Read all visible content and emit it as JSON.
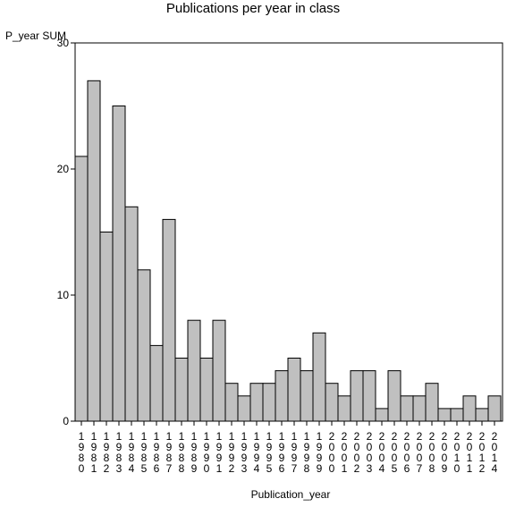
{
  "chart_data": {
    "type": "bar",
    "title": "Publications per year in class",
    "xlabel": "Publication_year",
    "ylabel": "P_year SUM",
    "ylim": [
      0,
      30
    ],
    "yticks": [
      0,
      10,
      20,
      30
    ],
    "categories": [
      "1980",
      "1981",
      "1982",
      "1983",
      "1984",
      "1985",
      "1986",
      "1987",
      "1988",
      "1989",
      "1990",
      "1991",
      "1992",
      "1993",
      "1994",
      "1995",
      "1996",
      "1997",
      "1998",
      "1999",
      "2000",
      "2001",
      "2002",
      "2003",
      "2004",
      "2005",
      "2006",
      "2007",
      "2008",
      "2009",
      "2010",
      "2011",
      "2012",
      "2014"
    ],
    "values": [
      21,
      27,
      15,
      25,
      17,
      12,
      6,
      16,
      5,
      8,
      5,
      8,
      3,
      2,
      3,
      3,
      4,
      5,
      4,
      7,
      3,
      2,
      4,
      4,
      1,
      4,
      2,
      2,
      3,
      1,
      1,
      2,
      1,
      2
    ],
    "bar_color": "#c0c0c0",
    "grid": false
  }
}
